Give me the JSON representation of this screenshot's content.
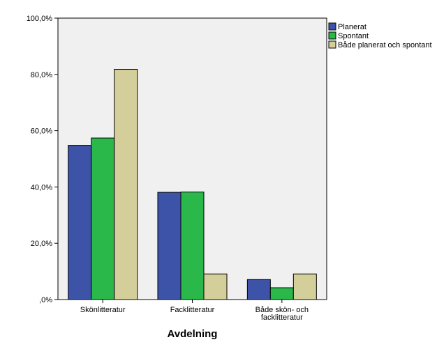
{
  "chart_data": {
    "type": "bar",
    "title": "",
    "xlabel": "Avdelning",
    "ylabel": "",
    "categories": [
      "Skönlitteratur",
      "Facklitteratur",
      "Både skön- och facklitteratur"
    ],
    "category_label_lines": [
      [
        "Skönlitteratur"
      ],
      [
        "Facklitteratur"
      ],
      [
        "Både skön- och",
        "facklitteratur"
      ]
    ],
    "series": [
      {
        "name": "Planerat",
        "color": "#3d53a8",
        "values": [
          54.8,
          38.1,
          7.1
        ]
      },
      {
        "name": "Spontant",
        "color": "#2ab84a",
        "values": [
          57.4,
          38.2,
          4.2
        ]
      },
      {
        "name": "Både planerat och spontant",
        "color": "#d4cf9a",
        "values": [
          81.8,
          9.1,
          9.1
        ]
      }
    ],
    "ylim": [
      0,
      100
    ],
    "yticks": [
      0,
      20,
      40,
      60,
      80,
      100
    ],
    "ytick_labels": [
      ",0%",
      "20,0%",
      "40,0%",
      "60,0%",
      "80,0%",
      "100,0%"
    ],
    "grid": false,
    "legend_position": "top-right",
    "plot_background": "#f0f0f0"
  }
}
